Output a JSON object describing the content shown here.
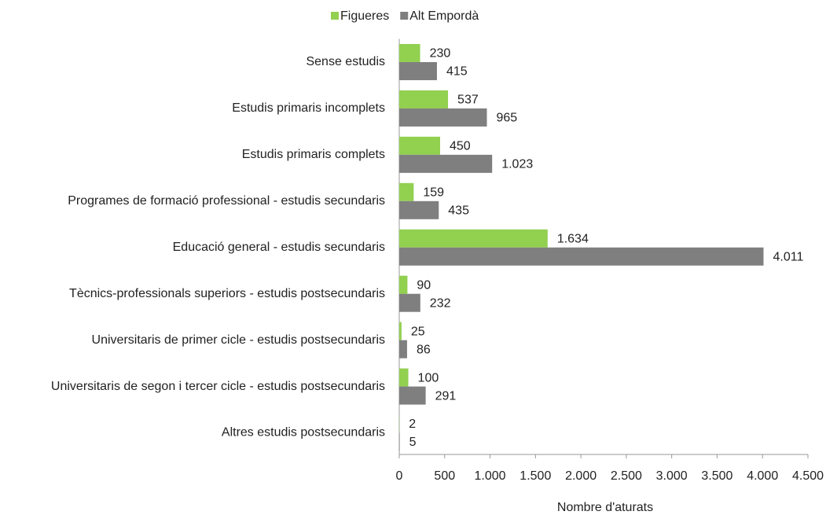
{
  "chart_data": {
    "type": "hbar",
    "categories": [
      "Sense estudis",
      "Estudis primaris incomplets",
      "Estudis primaris complets",
      "Programes de formació professional - estudis secundaris",
      "Educació general - estudis secundaris",
      "Tècnics-professionals superiors - estudis postsecundaris",
      "Universitaris de primer cicle - estudis postsecundaris",
      "Universitaris de segon i tercer cicle - estudis postsecundaris",
      "Altres estudis postsecundaris"
    ],
    "series": [
      {
        "name": "Figueres",
        "color": "#92d050",
        "values": [
          230,
          537,
          450,
          159,
          1634,
          90,
          25,
          100,
          2
        ],
        "value_labels": [
          "230",
          "537",
          "450",
          "159",
          "1.634",
          "90",
          "25",
          "100",
          "2"
        ]
      },
      {
        "name": "Alt Empordà",
        "color": "#7f7f7f",
        "values": [
          415,
          965,
          1023,
          435,
          4011,
          232,
          86,
          291,
          5
        ],
        "value_labels": [
          "415",
          "965",
          "1.023",
          "435",
          "4.011",
          "232",
          "86",
          "291",
          "5"
        ]
      }
    ],
    "xlabel": "Nombre d'aturats",
    "xlim": [
      0,
      4500
    ],
    "xticks": [
      0,
      500,
      {
        "value": 1000,
        "label": "1.000"
      },
      {
        "value": 1500,
        "label": "1.500"
      },
      {
        "value": 2000,
        "label": "2.000"
      },
      {
        "value": 2500,
        "label": "2.500"
      },
      {
        "value": 3000,
        "label": "3.000"
      },
      {
        "value": 3500,
        "label": "3.500"
      },
      {
        "value": 4000,
        "label": "4.000"
      },
      {
        "value": 4500,
        "label": "4.500"
      }
    ],
    "legend": "top"
  }
}
